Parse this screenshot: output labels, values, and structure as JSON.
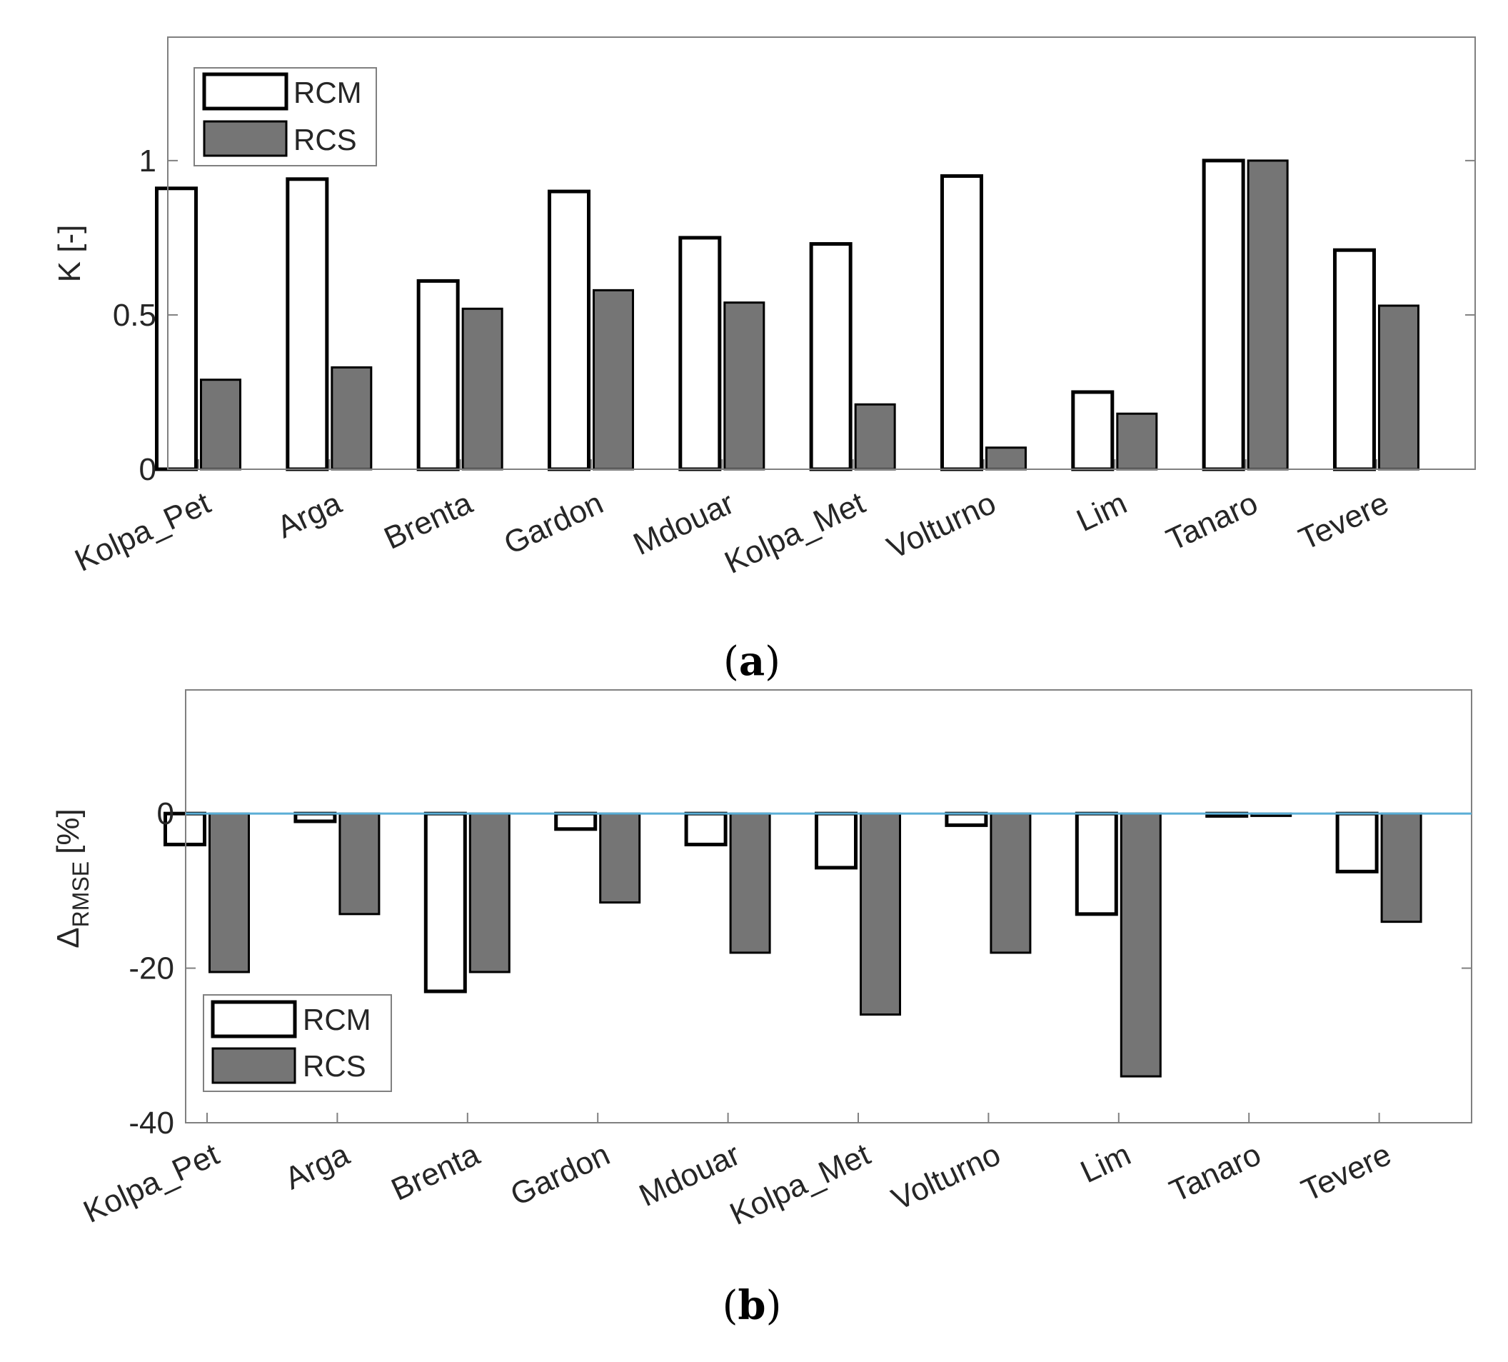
{
  "chart_data": [
    {
      "type": "bar",
      "id": "a",
      "caption_open": "(",
      "caption_letter": "a",
      "caption_close": ")",
      "categories": [
        "Kolpa_Pet",
        "Arga",
        "Brenta",
        "Gardon",
        "Mdouar",
        "Kolpa_Met",
        "Volturno",
        "Lim",
        "Tanaro",
        "Tevere"
      ],
      "series": [
        {
          "name": "RCM",
          "values": [
            0.91,
            0.94,
            0.61,
            0.9,
            0.75,
            0.73,
            0.95,
            0.25,
            1.0,
            0.71
          ]
        },
        {
          "name": "RCS",
          "values": [
            0.29,
            0.33,
            0.52,
            0.58,
            0.54,
            0.21,
            0.07,
            0.18,
            1.0,
            0.53
          ]
        }
      ],
      "ylabel": "K [-]",
      "ylim": [
        0,
        1.4
      ],
      "yticks": [
        {
          "value": 0,
          "label": "0"
        },
        {
          "value": 0.5,
          "label": "0.5"
        },
        {
          "value": 1,
          "label": "1"
        }
      ],
      "legend": "top-left",
      "grid": false
    },
    {
      "type": "bar",
      "id": "b",
      "caption_open": "(",
      "caption_letter": "b",
      "caption_close": ")",
      "categories": [
        "Kolpa_Pet",
        "Arga",
        "Brenta",
        "Gardon",
        "Mdouar",
        "Kolpa_Met",
        "Volturno",
        "Lim",
        "Tanaro",
        "Tevere"
      ],
      "series": [
        {
          "name": "RCM",
          "values": [
            -4,
            -1,
            -23,
            -2,
            -4,
            -7,
            -1.5,
            -13,
            -0.3,
            -7.5
          ]
        },
        {
          "name": "RCS",
          "values": [
            -20.5,
            -13,
            -20.5,
            -11.5,
            -18,
            -26,
            -18,
            -34,
            -0.3,
            -14
          ]
        }
      ],
      "ylabel_main": "Δ",
      "ylabel_sub": "RMSE",
      "ylabel_unit": "[%]",
      "ylim": [
        -40,
        16
      ],
      "yticks": [
        {
          "value": -40,
          "label": "-40"
        },
        {
          "value": -20,
          "label": "-20"
        },
        {
          "value": 0,
          "label": "0"
        }
      ],
      "zero_line_color": "#5aaed6",
      "legend": "bottom-left",
      "grid": false
    }
  ],
  "colors": {
    "rcm_fill": "#ffffff",
    "rcs_fill": "#757575",
    "stroke": "#000000",
    "axis": "#808080",
    "text": "#262626"
  }
}
